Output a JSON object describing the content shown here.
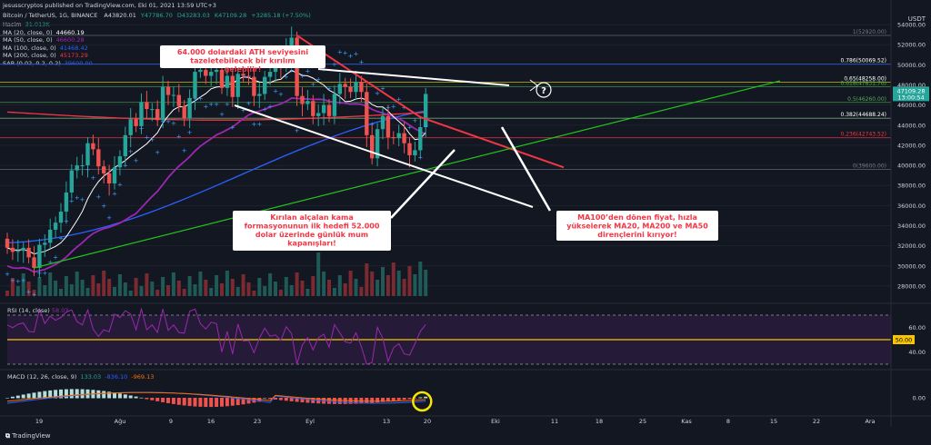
{
  "header": {
    "title": "jesusscryptos published on TradingView.com, Eki 01, 2021 13:59 UTC+3",
    "symbol": "Bitcoin / TetherUS, 1G, BINANCE",
    "ohlc": [
      {
        "label": "A",
        "value": "43820.01",
        "color": "#d1d4dc"
      },
      {
        "label": "Y",
        "value": "47786.70",
        "color": "#26a69a"
      },
      {
        "label": "D",
        "value": "43283.03",
        "color": "#26a69a"
      },
      {
        "label": "K",
        "value": "47109.28",
        "color": "#26a69a"
      },
      {
        "label": "",
        "value": "+3285.18 (+7.50%)",
        "color": "#26a69a"
      }
    ]
  },
  "indicators": [
    {
      "name": "Hacim",
      "value": "31.013K",
      "color": "#26a69a"
    },
    {
      "name": "MA (20, close, 0)",
      "value": "44660.19",
      "color": "#ffffff"
    },
    {
      "name": "MA (50, close, 0)",
      "value": "46600.28",
      "color": "#9c27b0"
    },
    {
      "name": "MA (100, close, 0)",
      "value": "41468.42",
      "color": "#2962ff"
    },
    {
      "name": "MA (200, close, 0)",
      "value": "45173.29",
      "color": "#f23645"
    },
    {
      "name": "SAR (0.02, 0.2, 0.2)",
      "value": "39600.00",
      "color": "#2962ff"
    }
  ],
  "currency": "USDT",
  "price_axis": [
    "54000.00",
    "52000.00",
    "50000.00",
    "48000.00",
    "46000.00",
    "44000.00",
    "42000.00",
    "40000.00",
    "38000.00",
    "36000.00",
    "34000.00",
    "32000.00",
    "30000.00",
    "28000.00"
  ],
  "price_tags": {
    "last": "47109.28",
    "time": "13:00:54"
  },
  "fib_levels": [
    {
      "label": "1(52920.00)",
      "price": 52920,
      "color": "#787b86",
      "text_color": "#787b86"
    },
    {
      "label": "0.786(50069.52)",
      "price": 50069.52,
      "color": "#2962ff",
      "text_color": "#ffffff"
    },
    {
      "label": "0.65(48258.00)",
      "price": 48258,
      "color": "#f7e600",
      "text_color": "#ffffff"
    },
    {
      "label": "0.618(47831.76)",
      "price": 47831.76,
      "color": "#4caf50",
      "text_color": "#4caf50"
    },
    {
      "label": "0.5(46260.00)",
      "price": 46260,
      "color": "#4caf50",
      "text_color": "#4caf50"
    },
    {
      "label": "0.382(44688.24)",
      "price": 44688.24,
      "color": "#81c784",
      "text_color": "#ffffff"
    },
    {
      "label": "0.236(42743.52)",
      "price": 42743.52,
      "color": "#f23645",
      "text_color": "#f23645"
    },
    {
      "label": "0(39600.00)",
      "price": 39600,
      "color": "#787b86",
      "text_color": "#787b86"
    }
  ],
  "annotations": [
    {
      "text": "64.000 dolardaki ATH seviyesini tazeletebilecek bir kırılım gelebilir!"
    },
    {
      "text": "Kırılan alçalan kama formasyonunun ilk hedefi 52.000 dolar üzerinde günlük mum kapanışları!"
    },
    {
      "text": "MA100’den dönen fiyat, hızla yükselerek MA20, MA200 ve MA50 dirençlerini kırıyor!"
    }
  ],
  "x_axis": [
    "19",
    "Ağu",
    "9",
    "16",
    "23",
    "Eyl",
    "13",
    "20",
    "Eki",
    "11",
    "18",
    "25",
    "Kas",
    "8",
    "15",
    "22",
    "Ara"
  ],
  "rsi": {
    "label": "RSI (14, close)",
    "value": "58.03",
    "axis": [
      "60.00",
      "50.00",
      "40.00"
    ]
  },
  "macd": {
    "label": "MACD (12, 26, close, 9)",
    "values": [
      "133.03",
      "-836.10",
      "-969.13"
    ],
    "axis": [
      "0.00"
    ]
  },
  "footer": {
    "brand": "TradingView"
  },
  "chart_data": {
    "type": "candlestick",
    "title": "Bitcoin / TetherUS, 1G, BINANCE",
    "x": [
      "Jul 15",
      "Jul 16",
      "Jul 17",
      "Jul 18",
      "Jul 19",
      "Jul 20",
      "Jul 21",
      "Jul 22",
      "Jul 23",
      "Jul 24",
      "Jul 25",
      "Jul 26",
      "Jul 27",
      "Jul 28",
      "Jul 29",
      "Jul 30",
      "Jul 31",
      "Aug 01",
      "Aug 02",
      "Aug 03",
      "Aug 04",
      "Aug 05",
      "Aug 06",
      "Aug 07",
      "Aug 08",
      "Aug 09",
      "Aug 10",
      "Aug 11",
      "Aug 12",
      "Aug 13",
      "Aug 14",
      "Aug 15",
      "Aug 16",
      "Aug 17",
      "Aug 18",
      "Aug 19",
      "Aug 20",
      "Aug 21",
      "Aug 22",
      "Aug 23",
      "Aug 24",
      "Aug 25",
      "Aug 26",
      "Aug 27",
      "Aug 28",
      "Aug 29",
      "Aug 30",
      "Aug 31",
      "Sep 01",
      "Sep 02",
      "Sep 03",
      "Sep 04",
      "Sep 05",
      "Sep 06",
      "Sep 07",
      "Sep 08",
      "Sep 09",
      "Sep 10",
      "Sep 11",
      "Sep 12",
      "Sep 13",
      "Sep 14",
      "Sep 15",
      "Sep 16",
      "Sep 17",
      "Sep 18",
      "Sep 19",
      "Sep 20",
      "Sep 21",
      "Sep 22",
      "Sep 23",
      "Sep 24",
      "Sep 25",
      "Sep 26",
      "Sep 27",
      "Sep 28",
      "Sep 29",
      "Sep 30",
      "Oct 01"
    ],
    "close": [
      31800,
      31400,
      31500,
      31800,
      30850,
      29800,
      32100,
      32300,
      33600,
      34300,
      35400,
      37300,
      39500,
      40000,
      40000,
      42200,
      41600,
      39900,
      39200,
      38200,
      39800,
      40900,
      43000,
      44600,
      43900,
      46300,
      45600,
      45600,
      44500,
      47800,
      47000,
      47000,
      45900,
      44700,
      46700,
      49300,
      49500,
      48900,
      49300,
      49500,
      47700,
      48900,
      46800,
      49100,
      48900,
      48800,
      46900,
      47100,
      48800,
      49300,
      50000,
      49900,
      51800,
      52700,
      46900,
      46100,
      46400,
      44900,
      45200,
      46000,
      44900,
      47100,
      48100,
      47800,
      47300,
      48300,
      47300,
      43000,
      40700,
      43600,
      44900,
      42800,
      42700,
      43200,
      42200,
      41000,
      41500,
      43800,
      47100
    ],
    "open": [
      32700,
      31800,
      31400,
      31500,
      31800,
      30850,
      29800,
      32100,
      32300,
      33600,
      34300,
      35400,
      37300,
      39500,
      40000,
      40000,
      42200,
      41600,
      39900,
      39200,
      38200,
      39800,
      40900,
      43000,
      44600,
      43900,
      46300,
      45600,
      45600,
      44500,
      47800,
      47000,
      47000,
      45900,
      44700,
      46700,
      49300,
      49500,
      48900,
      49300,
      49500,
      47700,
      48900,
      46800,
      49100,
      48900,
      48800,
      46900,
      47100,
      48800,
      49300,
      50000,
      49900,
      51800,
      52700,
      46900,
      46100,
      46400,
      44900,
      45200,
      46000,
      44900,
      47100,
      48100,
      47800,
      47300,
      48300,
      47300,
      43000,
      40700,
      43600,
      44900,
      42800,
      42700,
      43200,
      42200,
      41000,
      41500,
      43800
    ],
    "resistance_line": {
      "from": [
        "Sep 07",
        52920
      ],
      "to": [
        "Sep 30",
        44800
      ]
    },
    "support_line": {
      "from": [
        "Jul 20",
        29800
      ],
      "to": [
        "Nov 20",
        48400
      ]
    },
    "series": [
      {
        "name": "MA (20, close, 0)",
        "last": 44660.19
      },
      {
        "name": "MA (50, close, 0)",
        "last": 46600.28
      },
      {
        "name": "MA (100, close, 0)",
        "last": 41468.42
      },
      {
        "name": "MA (200, close, 0)",
        "last": 45173.29
      }
    ],
    "ylim": [
      27000,
      55000
    ]
  }
}
